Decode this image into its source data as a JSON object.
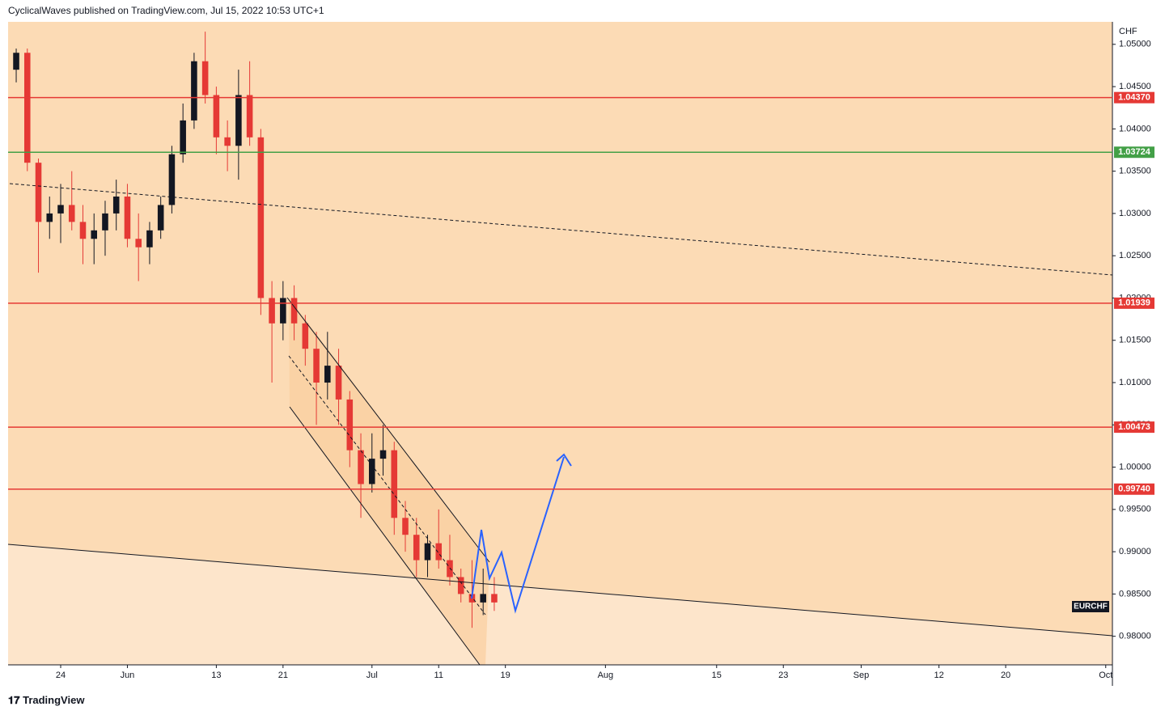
{
  "header": {
    "text": "CyclicalWaves published on TradingView.com, Jul 15, 2022 10:53 UTC+1"
  },
  "footer": {
    "brand": "TradingView"
  },
  "chart_data": {
    "type": "candlestick",
    "currency": "CHF",
    "symbol": "EURCHF",
    "up_color": "#131722",
    "down_color": "#e53935",
    "ylim": [
      0.97662,
      1.05266
    ],
    "yticks": [
      {
        "value": 0.98,
        "label": "0.98000"
      },
      {
        "value": 0.985,
        "label": "0.98500"
      },
      {
        "value": 0.99,
        "label": "0.99000"
      },
      {
        "value": 0.995,
        "label": "0.99500"
      },
      {
        "value": 1.0,
        "label": "1.00000"
      },
      {
        "value": 1.005,
        "label": "1.00500"
      },
      {
        "value": 1.01,
        "label": "1.01000"
      },
      {
        "value": 1.015,
        "label": "1.01500"
      },
      {
        "value": 1.02,
        "label": "1.02000"
      },
      {
        "value": 1.025,
        "label": "1.02500"
      },
      {
        "value": 1.03,
        "label": "1.03000"
      },
      {
        "value": 1.035,
        "label": "1.03500"
      },
      {
        "value": 1.04,
        "label": "1.04000"
      },
      {
        "value": 1.045,
        "label": "1.04500"
      },
      {
        "value": 1.05,
        "label": "1.05000"
      }
    ],
    "xlim": [
      -4.73,
      94.6
    ],
    "xticks": [
      {
        "value": 0,
        "label": "24"
      },
      {
        "value": 6,
        "label": "Jun"
      },
      {
        "value": 14,
        "label": "13"
      },
      {
        "value": 20,
        "label": "21"
      },
      {
        "value": 28,
        "label": "Jul"
      },
      {
        "value": 34,
        "label": "11"
      },
      {
        "value": 40,
        "label": "19"
      },
      {
        "value": 49,
        "label": "Aug"
      },
      {
        "value": 59,
        "label": "15"
      },
      {
        "value": 65,
        "label": "23"
      },
      {
        "value": 72,
        "label": "Sep"
      },
      {
        "value": 79,
        "label": "12"
      },
      {
        "value": 85,
        "label": "20"
      },
      {
        "value": 94,
        "label": "Oct"
      }
    ],
    "levels": [
      {
        "value": 1.0437,
        "label": "1.04370",
        "color": "#e53935"
      },
      {
        "value": 1.03724,
        "label": "1.03724",
        "color": "#43a047"
      },
      {
        "value": 1.01939,
        "label": "1.01939",
        "color": "#e53935"
      },
      {
        "value": 1.00473,
        "label": "1.00473",
        "color": "#e53935"
      },
      {
        "value": 0.9974,
        "label": "0.99740",
        "color": "#e53935"
      }
    ],
    "x": [
      -4,
      -3,
      -2,
      -1,
      0,
      1,
      2,
      3,
      4,
      5,
      6,
      7,
      8,
      9,
      10,
      11,
      12,
      13,
      14,
      15,
      16,
      17,
      18,
      19,
      20,
      21,
      22,
      23,
      24,
      25,
      26,
      27,
      28,
      29,
      30,
      31,
      32,
      33,
      34,
      35,
      36,
      37,
      38,
      39
    ],
    "open": [
      1.047,
      1.049,
      1.036,
      1.029,
      1.03,
      1.031,
      1.029,
      1.027,
      1.028,
      1.03,
      1.032,
      1.027,
      1.026,
      1.028,
      1.031,
      1.037,
      1.041,
      1.048,
      1.044,
      1.039,
      1.038,
      1.044,
      1.039,
      1.02,
      1.017,
      1.02,
      1.017,
      1.014,
      1.01,
      1.012,
      1.008,
      1.002,
      0.998,
      1.001,
      1.002,
      0.994,
      0.992,
      0.989,
      0.991,
      0.989,
      0.987,
      0.985,
      0.984,
      0.985
    ],
    "high": [
      1.0495,
      1.0495,
      1.0365,
      1.032,
      1.0335,
      1.035,
      1.031,
      1.03,
      1.0315,
      1.034,
      1.0335,
      1.03,
      1.029,
      1.032,
      1.038,
      1.043,
      1.049,
      1.0515,
      1.045,
      1.041,
      1.047,
      1.048,
      1.04,
      1.022,
      1.022,
      1.0215,
      1.018,
      1.016,
      1.016,
      1.014,
      1.009,
      1.004,
      1.004,
      1.005,
      1.003,
      0.996,
      0.994,
      0.992,
      0.995,
      0.992,
      0.988,
      0.989,
      0.988,
      0.987
    ],
    "low": [
      1.0455,
      1.035,
      1.023,
      1.027,
      1.0265,
      1.028,
      1.024,
      1.024,
      1.025,
      1.028,
      1.026,
      1.022,
      1.024,
      1.027,
      1.03,
      1.036,
      1.04,
      1.043,
      1.037,
      1.035,
      1.034,
      1.038,
      1.018,
      1.01,
      1.015,
      1.015,
      1.012,
      1.005,
      1.008,
      1.005,
      1.0,
      0.994,
      0.997,
      0.999,
      0.992,
      0.99,
      0.987,
      0.987,
      0.988,
      0.986,
      0.984,
      0.981,
      0.9825,
      0.983
    ],
    "close": [
      1.049,
      1.036,
      1.029,
      1.03,
      1.031,
      1.029,
      1.027,
      1.028,
      1.03,
      1.032,
      1.027,
      1.026,
      1.028,
      1.031,
      1.037,
      1.041,
      1.048,
      1.044,
      1.039,
      1.038,
      1.044,
      1.039,
      1.02,
      1.017,
      1.02,
      1.017,
      1.014,
      1.01,
      1.012,
      1.008,
      1.002,
      0.998,
      1.001,
      1.002,
      0.994,
      0.992,
      0.989,
      0.991,
      0.989,
      0.987,
      0.985,
      0.984,
      0.985,
      0.984
    ]
  }
}
